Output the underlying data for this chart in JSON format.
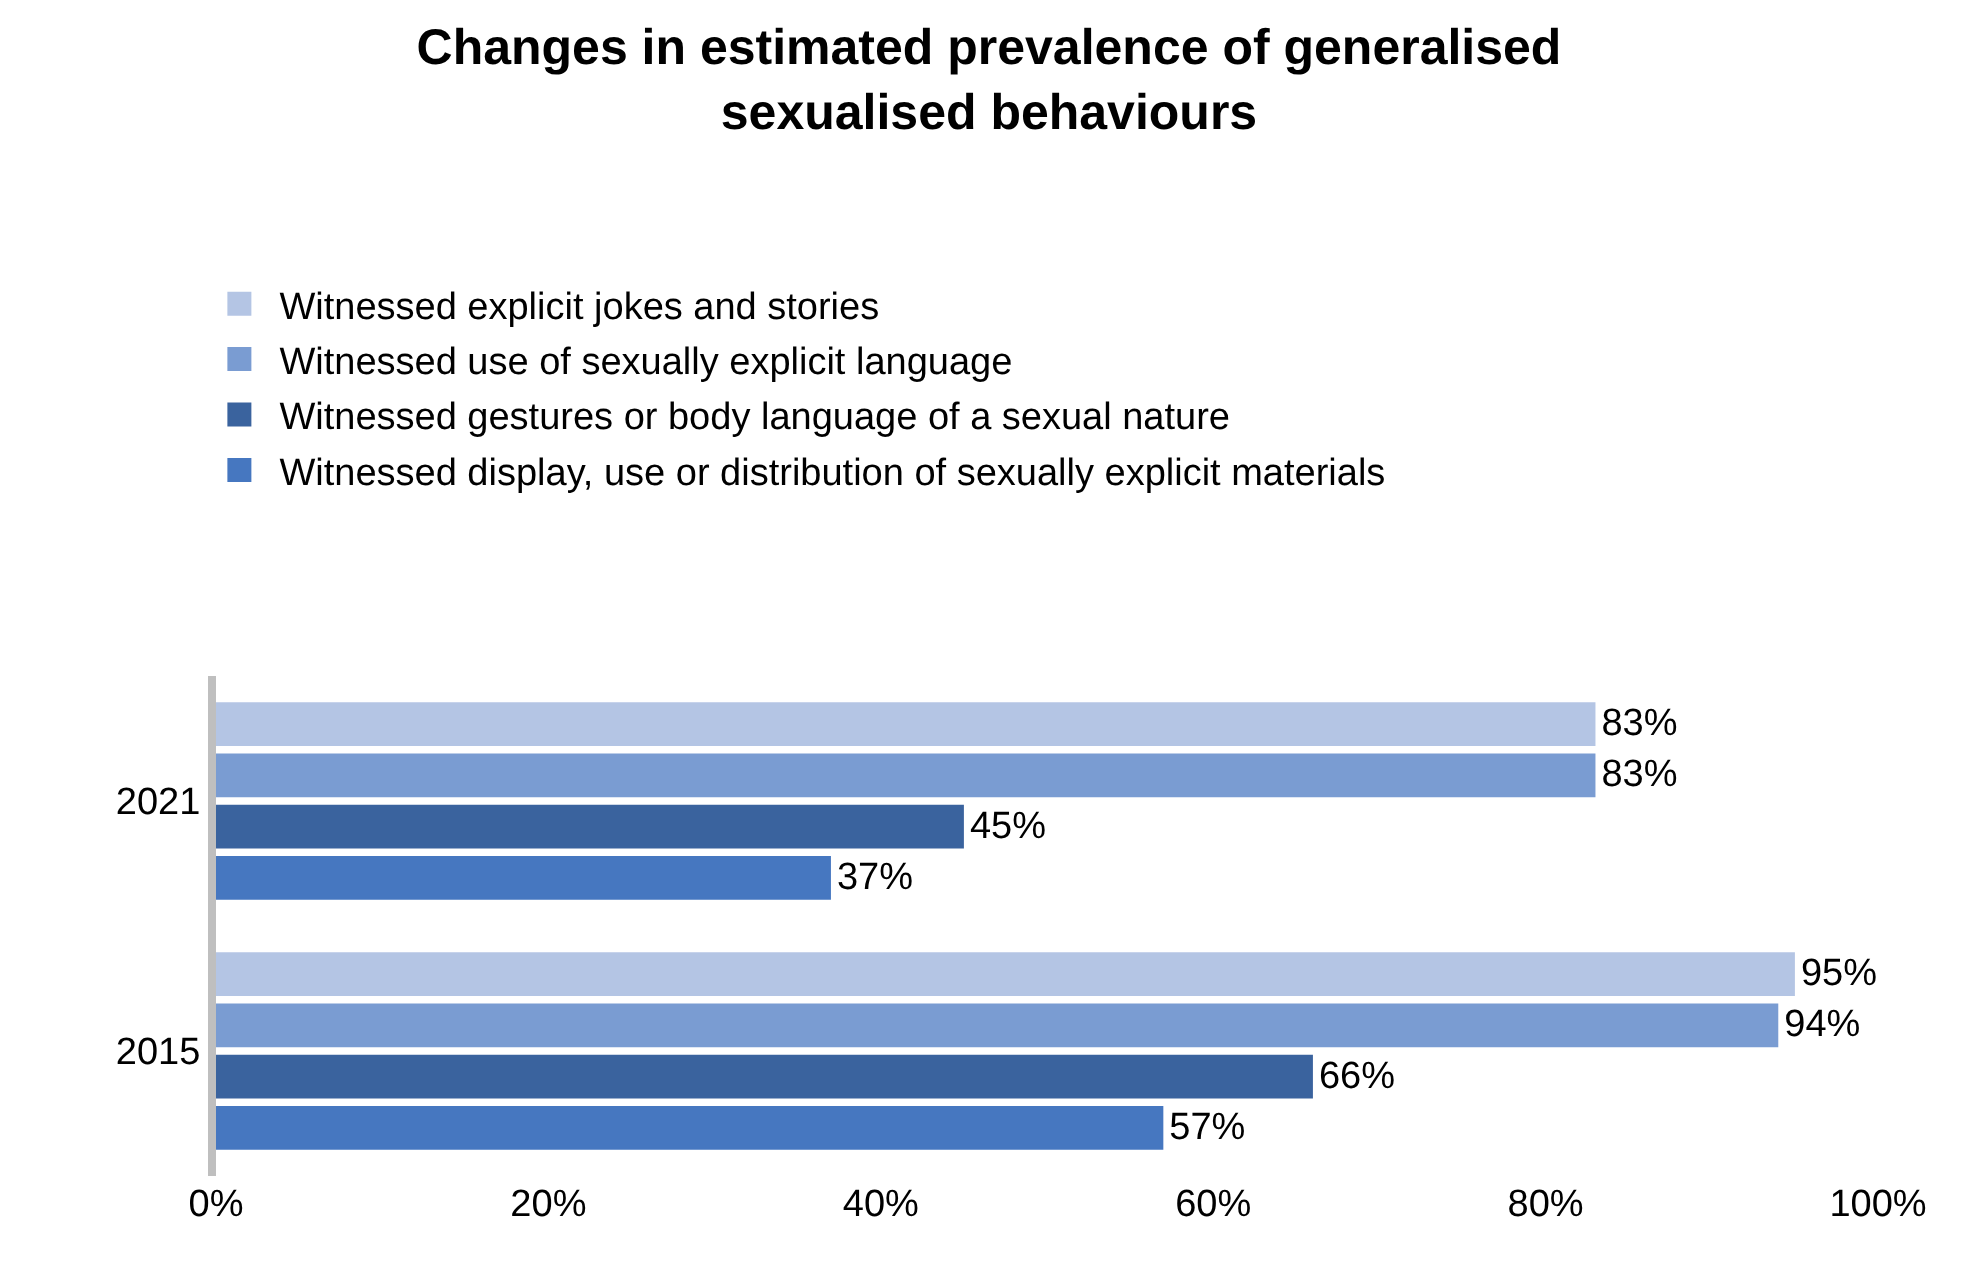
{
  "chart_data": {
    "type": "bar",
    "orientation": "horizontal",
    "title": "Changes in estimated prevalence of generalised sexualised behaviours",
    "categories": [
      "2021",
      "2015"
    ],
    "series": [
      {
        "name": "Witnessed explicit jokes and stories",
        "color": "#b4c5e4",
        "values": [
          83,
          95
        ],
        "value_labels": [
          "83%",
          "95%"
        ]
      },
      {
        "name": "Witnessed use of sexually explicit language",
        "color": "#7a9cd2",
        "values": [
          83,
          94
        ],
        "value_labels": [
          "83%",
          "94%"
        ]
      },
      {
        "name": "Witnessed gestures or body language of a sexual nature",
        "color": "#3a639e",
        "values": [
          45,
          66
        ],
        "value_labels": [
          "45%",
          "66%"
        ]
      },
      {
        "name": "Witnessed display, use or distribution of sexually explicit materials",
        "color": "#4677c0",
        "values": [
          37,
          57
        ],
        "value_labels": [
          "37%",
          "57%"
        ]
      }
    ],
    "xlim": [
      0,
      100
    ],
    "xticks": [
      {
        "value": 0,
        "label": "0%"
      },
      {
        "value": 20,
        "label": "20%"
      },
      {
        "value": 40,
        "label": "40%"
      },
      {
        "value": 60,
        "label": "60%"
      },
      {
        "value": 80,
        "label": "80%"
      },
      {
        "value": 100,
        "label": "100%"
      }
    ],
    "legend": "top"
  }
}
